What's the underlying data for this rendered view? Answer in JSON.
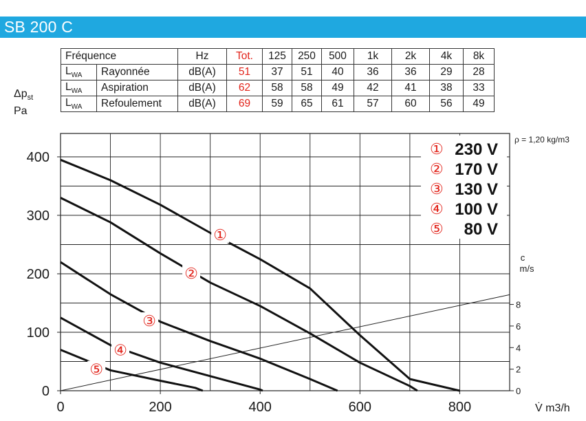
{
  "header": {
    "title": "SB 200 C",
    "bar_color": "#1fa8e0"
  },
  "noise_table": {
    "header": [
      "Fréquence",
      "Hz",
      "Tot.",
      "125",
      "250",
      "500",
      "1k",
      "2k",
      "4k",
      "8k"
    ],
    "rows": [
      {
        "lwa": "L",
        "sub": "WA",
        "label": "Rayonnée",
        "unit": "dB(A)",
        "tot": "51",
        "values": [
          "37",
          "51",
          "40",
          "36",
          "36",
          "29",
          "28"
        ]
      },
      {
        "lwa": "L",
        "sub": "WA",
        "label": "Aspiration",
        "unit": "dB(A)",
        "tot": "62",
        "values": [
          "58",
          "58",
          "49",
          "42",
          "41",
          "38",
          "33"
        ]
      },
      {
        "lwa": "L",
        "sub": "WA",
        "label": "Refoulement",
        "unit": "dB(A)",
        "tot": "69",
        "values": [
          "59",
          "65",
          "61",
          "57",
          "60",
          "56",
          "49"
        ]
      }
    ],
    "tot_color": "#e2231a"
  },
  "y_axis_label": {
    "symbol": "Δp",
    "sub": "st",
    "unit": "Pa"
  },
  "density_note": "ρ = 1,20 kg/m3",
  "chart_data": {
    "type": "line",
    "xlabel": "V̇ m3/h",
    "ylabel": "Δpst Pa",
    "xlim": [
      0,
      900
    ],
    "ylim": [
      0,
      440
    ],
    "xticks": [
      0,
      200,
      400,
      600,
      800
    ],
    "yticks": [
      0,
      100,
      200,
      300,
      400
    ],
    "grid": true,
    "legend_placement": "top-right",
    "legend": [
      {
        "marker": "①",
        "label": "230 V"
      },
      {
        "marker": "②",
        "label": "170 V"
      },
      {
        "marker": "③",
        "label": "130 V"
      },
      {
        "marker": "④",
        "label": "100 V"
      },
      {
        "marker": "⑤",
        "label": "80 V"
      }
    ],
    "series": [
      {
        "marker": "①",
        "points": [
          [
            0,
            395
          ],
          [
            100,
            360
          ],
          [
            200,
            318
          ],
          [
            300,
            270
          ],
          [
            400,
            225
          ],
          [
            500,
            175
          ],
          [
            600,
            95
          ],
          [
            700,
            20
          ],
          [
            800,
            0
          ]
        ]
      },
      {
        "marker": "②",
        "points": [
          [
            0,
            330
          ],
          [
            100,
            288
          ],
          [
            200,
            235
          ],
          [
            300,
            185
          ],
          [
            400,
            145
          ],
          [
            500,
            98
          ],
          [
            600,
            48
          ],
          [
            700,
            8
          ],
          [
            715,
            0
          ]
        ]
      },
      {
        "marker": "③",
        "points": [
          [
            0,
            220
          ],
          [
            100,
            165
          ],
          [
            200,
            118
          ],
          [
            300,
            85
          ],
          [
            400,
            55
          ],
          [
            500,
            20
          ],
          [
            555,
            0
          ]
        ]
      },
      {
        "marker": "④",
        "points": [
          [
            0,
            125
          ],
          [
            100,
            78
          ],
          [
            200,
            48
          ],
          [
            300,
            25
          ],
          [
            400,
            2
          ],
          [
            405,
            0
          ]
        ]
      },
      {
        "marker": "⑤",
        "points": [
          [
            0,
            70
          ],
          [
            100,
            35
          ],
          [
            200,
            17
          ],
          [
            270,
            5
          ],
          [
            285,
            0
          ]
        ]
      }
    ],
    "curve_label_positions": [
      {
        "marker": "①",
        "x": 320,
        "y": 267
      },
      {
        "marker": "②",
        "x": 262,
        "y": 201
      },
      {
        "marker": "③",
        "x": 178,
        "y": 120
      },
      {
        "marker": "④",
        "x": 120,
        "y": 70
      },
      {
        "marker": "⑤",
        "x": 72,
        "y": 37
      }
    ],
    "velocity_axis": {
      "label": "c",
      "unit": "m/s",
      "ticks": [
        "0",
        "2",
        "4",
        "6",
        "8"
      ],
      "line": [
        [
          0,
          0
        ],
        [
          900,
          8.9
        ]
      ]
    },
    "marker_color": "#e2231a"
  }
}
